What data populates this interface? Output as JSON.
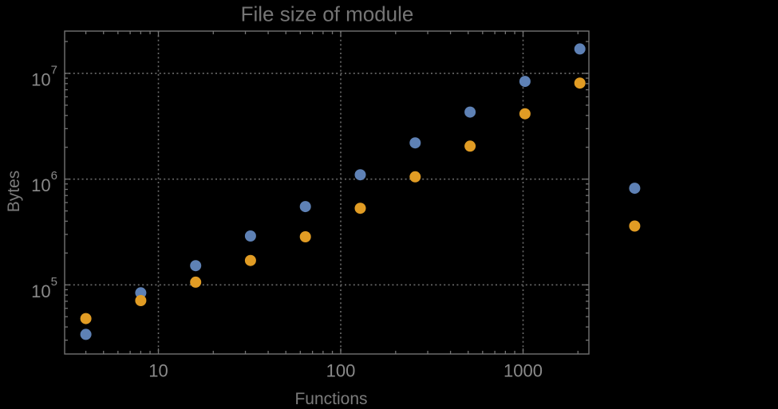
{
  "chart_data": {
    "type": "scatter",
    "title": "File size of module",
    "xlabel": "Functions",
    "ylabel": "Bytes",
    "x_scale": "log10",
    "y_scale": "log10",
    "xlim": [
      3.06,
      2296
    ],
    "ylim": [
      22200,
      25100000
    ],
    "grid": "dotted gray gridlines at powers of 10, frame on all four sides with inward log ticks",
    "legend": "none (two unlabeled points rendered outside right edge of frame)",
    "clipping": false,
    "x_major_ticks": [
      {
        "value": 10,
        "label": "10"
      },
      {
        "value": 100,
        "label": "100"
      },
      {
        "value": 1000,
        "label": "1000"
      }
    ],
    "y_major_ticks": [
      {
        "value": 100000,
        "base": "10",
        "exp": "5"
      },
      {
        "value": 1000000,
        "base": "10",
        "exp": "6"
      },
      {
        "value": 10000000,
        "base": "10",
        "exp": "7"
      }
    ],
    "x": [
      4,
      8,
      16,
      32,
      64,
      128,
      256,
      512,
      1024,
      2048,
      4096
    ],
    "series": [
      {
        "name": "series-1-blue",
        "color": "#5E81B5",
        "y": [
          34000,
          84000,
          152000,
          290000,
          550000,
          1100000,
          2200000,
          4300000,
          8400000,
          17000000,
          820000
        ]
      },
      {
        "name": "series-2-orange",
        "color": "#E19C24",
        "y": [
          48000,
          71000,
          106000,
          170000,
          285000,
          530000,
          1050000,
          2050000,
          4150000,
          8100000,
          360000
        ]
      }
    ]
  },
  "colors": {
    "background": "#000000",
    "frame": "#737373",
    "grid": "#6A6A6A",
    "tick_text": "#8A8A8A",
    "label_text": "#7B7B7B",
    "title_text": "#757575",
    "series_blue": "#5E81B5",
    "series_orange": "#E19C24"
  }
}
